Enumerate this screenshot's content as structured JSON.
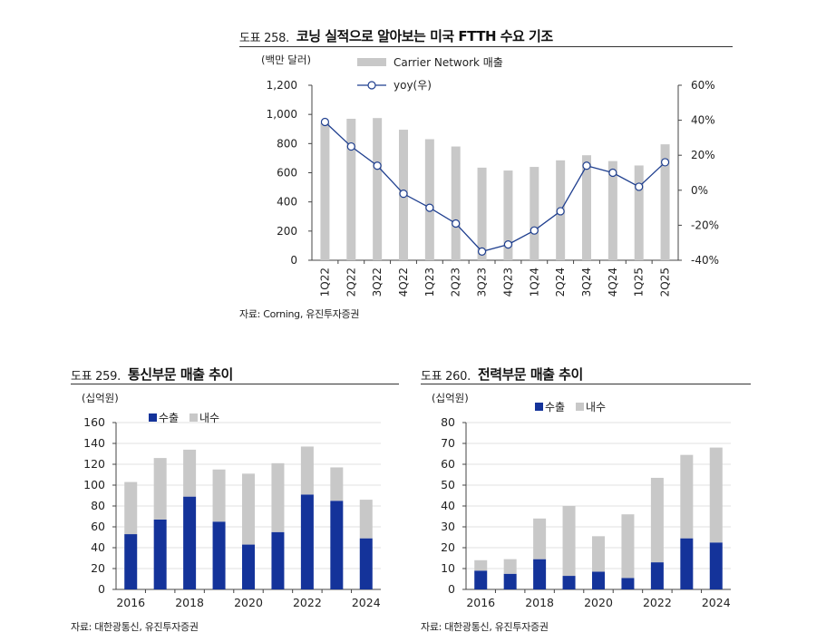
{
  "figures": [
    {
      "number": "도표 258.",
      "title": "코닝 실적으로 알아보는 미국 FTTH 수요 기조",
      "source": "자료: Corning, 유진투자증권"
    },
    {
      "number": "도표 259.",
      "title": "통신부문 매출 추이",
      "source": "자료: 대한광통신, 유진투자증권"
    },
    {
      "number": "도표 260.",
      "title": "전력부문 매출 추이",
      "source": "자료: 대한광통신, 유진투자증권"
    }
  ],
  "colors": {
    "bar_gray": "#c8c8c8",
    "bar_navy": "#14339a",
    "line_navy": "#1f3f8f",
    "axis": "#444444"
  },
  "chart_data": [
    {
      "type": "bar+line",
      "unit_label": "(백만 달러)",
      "categories": [
        "1Q22",
        "2Q22",
        "3Q22",
        "4Q22",
        "1Q23",
        "2Q23",
        "3Q23",
        "4Q23",
        "1Q24",
        "2Q24",
        "3Q24",
        "4Q24",
        "1Q25",
        "2Q25"
      ],
      "bar_series": {
        "name": "Carrier Network 매출",
        "values": [
          940,
          970,
          975,
          895,
          830,
          780,
          635,
          615,
          640,
          685,
          720,
          680,
          650,
          795
        ]
      },
      "line_series": {
        "name": "yoy(우)",
        "values": [
          39,
          25,
          14,
          -2,
          -10,
          -19,
          -35,
          -31,
          -23,
          -12,
          14,
          10,
          2,
          16
        ]
      },
      "ylim_left": [
        0,
        1200
      ],
      "yticks_left": [
        "0",
        "200",
        "400",
        "600",
        "800",
        "1,000",
        "1,200"
      ],
      "ylim_right": [
        -40,
        60
      ],
      "yticks_right": [
        "-40%",
        "-20%",
        "0%",
        "20%",
        "40%",
        "60%"
      ],
      "legend_position": "top"
    },
    {
      "type": "stacked-bar",
      "unit_label": "(십억원)",
      "x": [
        2016,
        2017,
        2018,
        2019,
        2020,
        2021,
        2022,
        2023,
        2024
      ],
      "xticks": [
        "2016",
        "2018",
        "2020",
        "2022",
        "2024"
      ],
      "series": [
        {
          "name": "수출",
          "values": [
            53,
            67,
            89,
            65,
            43,
            55,
            91,
            85,
            49
          ]
        },
        {
          "name": "내수",
          "values": [
            50,
            59,
            45,
            50,
            68,
            66,
            46,
            32,
            37
          ]
        }
      ],
      "ylim": [
        0,
        160
      ],
      "yticks": [
        "0",
        "20",
        "40",
        "60",
        "80",
        "100",
        "120",
        "140",
        "160"
      ],
      "legend_position": "top"
    },
    {
      "type": "stacked-bar",
      "unit_label": "(십억원)",
      "x": [
        2016,
        2017,
        2018,
        2019,
        2020,
        2021,
        2022,
        2023,
        2024
      ],
      "xticks": [
        "2016",
        "2018",
        "2020",
        "2022",
        "2024"
      ],
      "series": [
        {
          "name": "수출",
          "values": [
            9,
            7.5,
            14.5,
            6.5,
            8.5,
            5.5,
            13,
            24.5,
            22.5
          ]
        },
        {
          "name": "내수",
          "values": [
            5,
            7,
            19.5,
            33.5,
            17,
            30.5,
            40.5,
            40,
            45.5
          ]
        }
      ],
      "ylim": [
        0,
        80
      ],
      "yticks": [
        "0",
        "10",
        "20",
        "30",
        "40",
        "50",
        "60",
        "70",
        "80"
      ],
      "legend_position": "top"
    }
  ]
}
